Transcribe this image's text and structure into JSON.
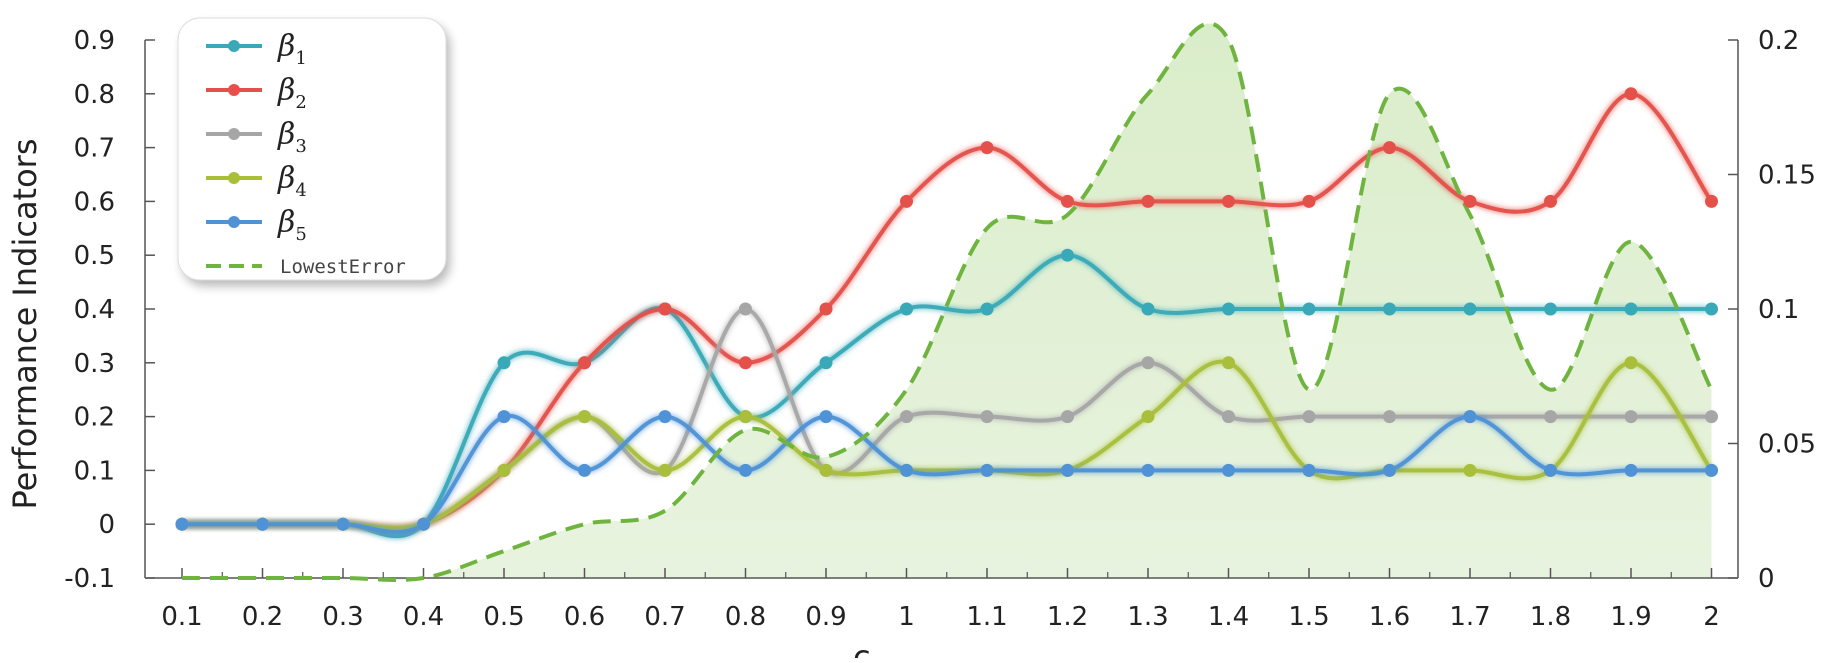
{
  "chart_data": {
    "type": "line",
    "x": [
      0.1,
      0.2,
      0.3,
      0.4,
      0.5,
      0.6,
      0.7,
      0.8,
      0.9,
      1.0,
      1.1,
      1.2,
      1.3,
      1.4,
      1.5,
      1.6,
      1.7,
      1.8,
      1.9,
      2.0
    ],
    "x_tick_labels": [
      "0.1",
      "0.2",
      "0.3",
      "0.4",
      "0.5",
      "0.6",
      "0.7",
      "0.8",
      "0.9",
      "1",
      "1.1",
      "1.2",
      "1.3",
      "1.4",
      "1.5",
      "1.6",
      "1.7",
      "1.8",
      "1.9",
      "2"
    ],
    "xlabel": "c",
    "ylabel": "Performance Indicators",
    "ylim": [
      -0.1,
      0.9
    ],
    "y_ticks": [
      -0.1,
      0,
      0.1,
      0.2,
      0.3,
      0.4,
      0.5,
      0.6,
      0.7,
      0.8,
      0.9
    ],
    "y_tick_labels": [
      "-0.1",
      "0",
      "0.1",
      "0.2",
      "0.3",
      "0.4",
      "0.5",
      "0.6",
      "0.7",
      "0.8",
      "0.9"
    ],
    "y2lim": [
      0,
      0.2
    ],
    "y2_ticks": [
      0,
      0.05,
      0.1,
      0.15,
      0.2
    ],
    "y2_tick_labels": [
      "0",
      "0.05",
      "0.1",
      "0.15",
      "0.2"
    ],
    "grid": false,
    "legend_position": "top-left",
    "series": [
      {
        "name": "β",
        "subscript": "1",
        "color": "#3aa9b7",
        "axis": "left",
        "values": [
          0,
          0,
          0,
          0,
          0.3,
          0.3,
          0.4,
          0.2,
          0.3,
          0.4,
          0.4,
          0.5,
          0.4,
          0.4,
          0.4,
          0.4,
          0.4,
          0.4,
          0.4,
          0.4
        ]
      },
      {
        "name": "β",
        "subscript": "2",
        "color": "#e4514a",
        "axis": "left",
        "values": [
          0,
          0,
          0,
          0,
          0.1,
          0.3,
          0.4,
          0.3,
          0.4,
          0.6,
          0.7,
          0.6,
          0.6,
          0.6,
          0.6,
          0.7,
          0.6,
          0.6,
          0.8,
          0.6
        ]
      },
      {
        "name": "β",
        "subscript": "3",
        "color": "#a6a6a6",
        "axis": "left",
        "values": [
          0,
          0,
          0,
          0,
          0.1,
          0.2,
          0.1,
          0.4,
          0.1,
          0.2,
          0.2,
          0.2,
          0.3,
          0.2,
          0.2,
          0.2,
          0.2,
          0.2,
          0.2,
          0.2
        ]
      },
      {
        "name": "β",
        "subscript": "4",
        "color": "#a9bf3b",
        "axis": "left",
        "values": [
          0,
          0,
          0,
          0,
          0.1,
          0.2,
          0.1,
          0.2,
          0.1,
          0.1,
          0.1,
          0.1,
          0.2,
          0.3,
          0.1,
          0.1,
          0.1,
          0.1,
          0.3,
          0.1
        ]
      },
      {
        "name": "β",
        "subscript": "5",
        "color": "#4f92d6",
        "axis": "left",
        "values": [
          0,
          0,
          0,
          0,
          0.2,
          0.1,
          0.2,
          0.1,
          0.2,
          0.1,
          0.1,
          0.1,
          0.1,
          0.1,
          0.1,
          0.1,
          0.2,
          0.1,
          0.1,
          0.1
        ]
      },
      {
        "name": "LowestError",
        "color": "#6fb43f",
        "axis": "right",
        "style": "dashed-with-fill",
        "values": [
          0,
          0,
          0,
          0,
          0.01,
          0.02,
          0.025,
          0.055,
          0.045,
          0.07,
          0.13,
          0.135,
          0.18,
          0.2,
          0.07,
          0.18,
          0.135,
          0.07,
          0.125,
          0.07
        ]
      }
    ]
  }
}
